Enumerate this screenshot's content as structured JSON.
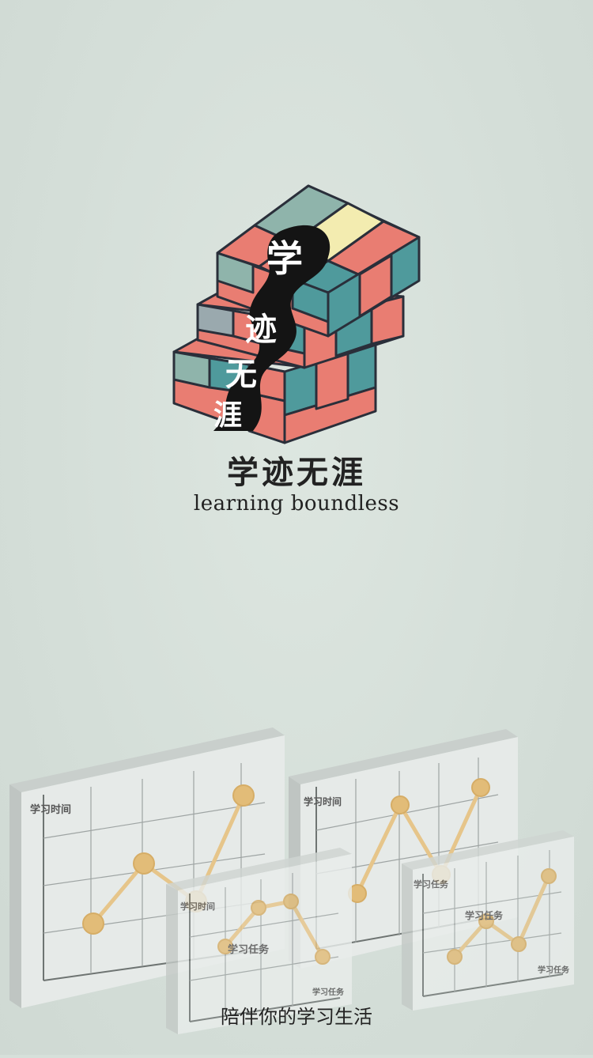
{
  "splash": {
    "logo": {
      "chars": [
        "学",
        "迹",
        "无",
        "涯"
      ]
    },
    "title": "学迹无涯",
    "subtitle": "learning boundless",
    "tagline": "陪伴你的学习生活"
  },
  "illustration": {
    "card1": {
      "ylabel": "学习时间"
    },
    "card2": {
      "ylabel": "学习时间"
    },
    "card3": {
      "ylabel": "学习时间",
      "xlabel": "学习任务",
      "caption": "学习任务"
    },
    "card4": {
      "ylabel": "学习任务",
      "caption": "学习任务",
      "xlabel": "学习任务"
    }
  },
  "colors": {
    "background": "#d6e0da",
    "cube_teal": "#4f9a9c",
    "cube_coral": "#e97d72",
    "cube_grey": "#9aa9ae",
    "cube_cream": "#f3ecb0",
    "cube_sage": "#8fb4ab",
    "ink": "#222222",
    "chart_line": "#e6c58a",
    "chart_dot": "#e2bc78"
  }
}
